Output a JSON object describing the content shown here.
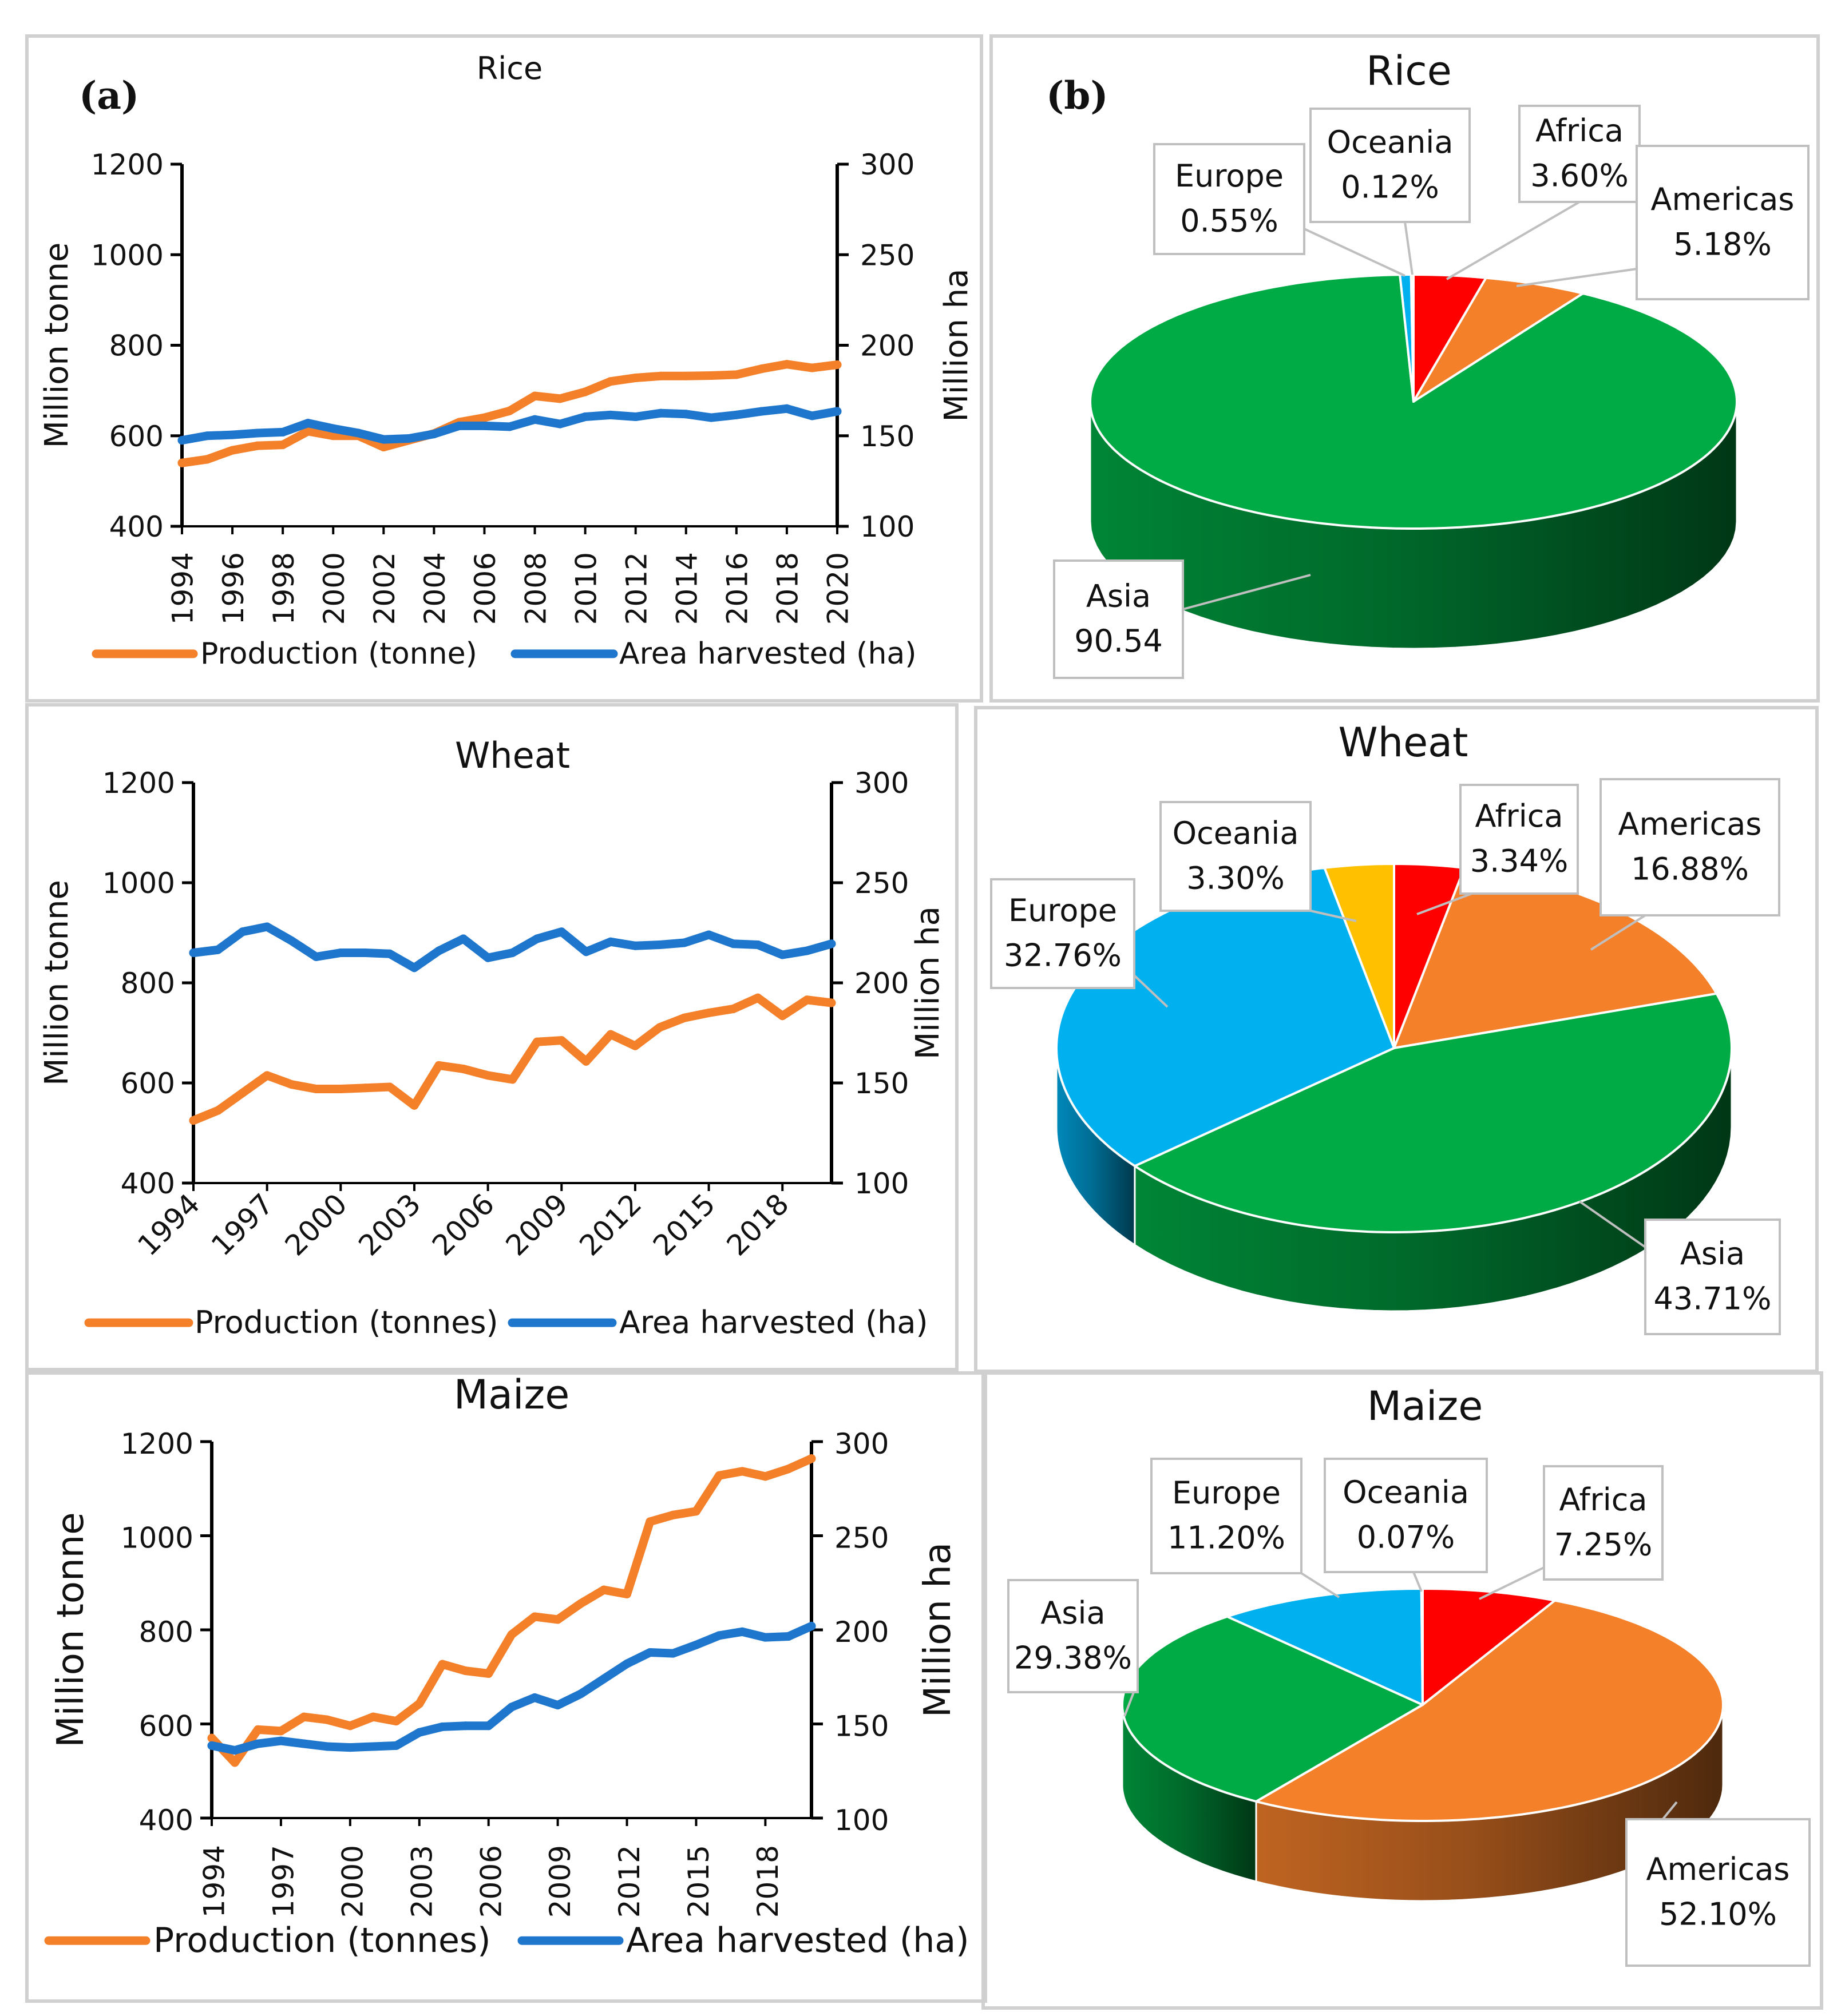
{
  "panel_tags": [
    "(a)",
    "(b)"
  ],
  "colors": {
    "production": "#F5802A",
    "area": "#1F77CD",
    "Asia": "#00AB45",
    "Europe": "#00B0EF",
    "Oceania": "#FFC000",
    "Africa": "#FF0000",
    "Americas": "#F5802A"
  },
  "chart_data": [
    {
      "type": "line",
      "title": "Rice",
      "ylabel": "Million tonne",
      "y2label": "Million ha",
      "ylim": [
        400,
        1200
      ],
      "y2lim": [
        100,
        300
      ],
      "yticks": [
        "400",
        "600",
        "800",
        "1000",
        "1200"
      ],
      "y2ticks": [
        "100",
        "150",
        "200",
        "250",
        "300"
      ],
      "xtick_labels": [
        "1994",
        "1996",
        "1998",
        "2000",
        "2002",
        "2004",
        "2006",
        "2008",
        "2010",
        "2012",
        "2014",
        "2016",
        "2018",
        "2020"
      ],
      "x": [
        1994,
        1995,
        1996,
        1997,
        1998,
        1999,
        2000,
        2001,
        2002,
        2003,
        2004,
        2005,
        2006,
        2007,
        2008,
        2009,
        2010,
        2011,
        2012,
        2013,
        2014,
        2015,
        2016,
        2017,
        2018,
        2019,
        2020
      ],
      "series": [
        {
          "name": "Production (tonne)",
          "axis": "left",
          "values": [
            540,
            548,
            568,
            578,
            580,
            610,
            600,
            600,
            575,
            590,
            605,
            630,
            640,
            655,
            688,
            682,
            697,
            720,
            728,
            732,
            732,
            733,
            735,
            748,
            758,
            750,
            757
          ]
        },
        {
          "name": "Area harvested (ha)",
          "axis": "right",
          "values": [
            147.5,
            150,
            150.5,
            151.5,
            152,
            157,
            154,
            151.5,
            148,
            148.5,
            151,
            155.5,
            155.5,
            155,
            159,
            156.5,
            160.5,
            161.5,
            160.5,
            162.5,
            162,
            160,
            161.5,
            163.5,
            165,
            161,
            163.5
          ]
        }
      ],
      "legend": "bottom"
    },
    {
      "type": "line",
      "title": "Wheat",
      "ylabel": "Million tonne",
      "y2label": "Million ha",
      "ylim": [
        400,
        1200
      ],
      "y2lim": [
        100,
        300
      ],
      "yticks": [
        "400",
        "600",
        "800",
        "1000",
        "1200"
      ],
      "y2ticks": [
        "100",
        "150",
        "200",
        "250",
        "300"
      ],
      "xtick_labels": [
        "1994",
        "1997",
        "2000",
        "2003",
        "2006",
        "2009",
        "2012",
        "2015",
        "2018"
      ],
      "x": [
        1994,
        1995,
        1996,
        1997,
        1998,
        1999,
        2000,
        2001,
        2002,
        2003,
        2004,
        2005,
        2006,
        2007,
        2008,
        2009,
        2010,
        2011,
        2012,
        2013,
        2014,
        2015,
        2016,
        2017,
        2018,
        2019,
        2020
      ],
      "series": [
        {
          "name": "Production (tonnes)",
          "axis": "left",
          "values": [
            525,
            545,
            580,
            615,
            597,
            588,
            588,
            590,
            592,
            555,
            635,
            628,
            615,
            607,
            682,
            685,
            643,
            697,
            674,
            711,
            730,
            740,
            748,
            770,
            734,
            766,
            760
          ]
        },
        {
          "name": "Area harvested (ha)",
          "axis": "right",
          "values": [
            215,
            216.5,
            225.5,
            228,
            221,
            213,
            215,
            215,
            214.5,
            207.5,
            216,
            222,
            212.5,
            215,
            222,
            225.5,
            215.5,
            220.5,
            218.5,
            219,
            220,
            224,
            219.5,
            219,
            214,
            216,
            219.5
          ]
        }
      ],
      "legend": "bottom"
    },
    {
      "type": "line",
      "title": "Maize",
      "ylabel": "Million tonne",
      "y2label": "Million ha",
      "ylim": [
        400,
        1200
      ],
      "y2lim": [
        100,
        300
      ],
      "yticks": [
        "400",
        "600",
        "800",
        "1000",
        "1200"
      ],
      "y2ticks": [
        "100",
        "150",
        "200",
        "250",
        "300"
      ],
      "xtick_labels": [
        "1994",
        "1997",
        "2000",
        "2003",
        "2006",
        "2009",
        "2012",
        "2015",
        "2018"
      ],
      "x": [
        1994,
        1995,
        1996,
        1997,
        1998,
        1999,
        2000,
        2001,
        2002,
        2003,
        2004,
        2005,
        2006,
        2007,
        2008,
        2009,
        2010,
        2011,
        2012,
        2013,
        2014,
        2015,
        2016,
        2017,
        2018,
        2019,
        2020
      ],
      "series": [
        {
          "name": "Production (tonnes)",
          "axis": "left",
          "values": [
            570,
            518,
            588,
            585,
            615,
            609,
            596,
            615,
            606,
            643,
            727,
            713,
            707,
            790,
            828,
            822,
            856,
            885,
            876,
            1030,
            1044,
            1052,
            1128,
            1137,
            1126,
            1142,
            1164
          ]
        },
        {
          "name": "Area harvested (ha)",
          "axis": "right",
          "values": [
            138.5,
            136,
            139.5,
            141,
            139.5,
            138,
            137.5,
            138,
            138.5,
            145.5,
            148.5,
            149,
            149,
            159,
            164,
            160,
            166,
            174,
            182,
            188,
            187.5,
            192,
            197,
            199,
            196,
            196.5,
            202
          ]
        }
      ],
      "legend": "bottom"
    },
    {
      "type": "pie",
      "title": "Rice",
      "labels": [
        "Africa",
        "Americas",
        "Asia",
        "Europe",
        "Oceania"
      ],
      "values": [
        3.6,
        5.18,
        90.54,
        0.55,
        0.12
      ],
      "value_labels": [
        "3.60%",
        "5.18%",
        "90.54",
        "0.55%",
        "0.12%"
      ]
    },
    {
      "type": "pie",
      "title": "Wheat",
      "labels": [
        "Africa",
        "Americas",
        "Asia",
        "Europe",
        "Oceania"
      ],
      "values": [
        3.34,
        16.88,
        43.71,
        32.76,
        3.3
      ],
      "value_labels": [
        "3.34%",
        "16.88%",
        "43.71%",
        "32.76%",
        "3.30%"
      ]
    },
    {
      "type": "pie",
      "title": "Maize",
      "labels": [
        "Africa",
        "Americas",
        "Asia",
        "Europe",
        "Oceania"
      ],
      "values": [
        7.25,
        52.1,
        29.38,
        11.2,
        0.07
      ],
      "value_labels": [
        "7.25%",
        "52.10%",
        "29.38%",
        "11.20%",
        "0.07%"
      ]
    }
  ]
}
